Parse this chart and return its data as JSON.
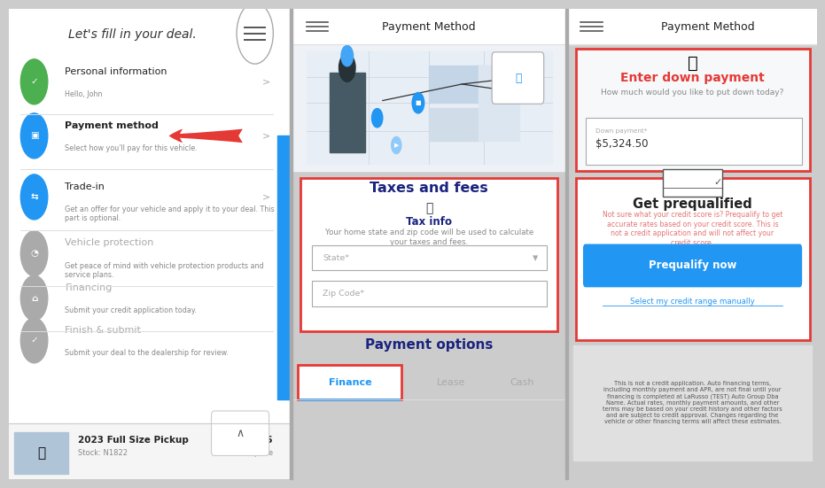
{
  "bg_color": "#ffffff",
  "panel1": {
    "bg": "#ffffff",
    "title": "Let's fill in your deal.",
    "items": [
      {
        "icon_color": "#4caf50",
        "label": "Personal information",
        "sublabel": "Hello, John",
        "active": false,
        "chevron": true
      },
      {
        "icon_color": "#2196f3",
        "label": "Payment method",
        "sublabel": "Select how you'll pay for this vehicle.",
        "active": true,
        "chevron": true,
        "arrow": true
      },
      {
        "icon_color": "#2196f3",
        "label": "Trade-in",
        "sublabel": "Get an offer for your vehicle and apply it to your deal. This\npart is optional.",
        "active": false,
        "chevron": true
      },
      {
        "icon_color": "#aaaaaa",
        "label": "Vehicle protection",
        "sublabel": "Get peace of mind with vehicle protection products and\nservice plans.",
        "active": false,
        "chevron": false
      },
      {
        "icon_color": "#aaaaaa",
        "label": "Financing",
        "sublabel": "Submit your credit application today.",
        "active": false,
        "chevron": false
      },
      {
        "icon_color": "#aaaaaa",
        "label": "Finish & submit",
        "sublabel": "Submit your deal to the dealership for review.",
        "active": false,
        "chevron": false
      }
    ],
    "car_label": "2023 Full Size Pickup",
    "car_stock": "Stock: N1822",
    "car_price": "$53,245",
    "car_price_label": "Vehicle price",
    "sidebar_color": "#2196f3",
    "footer_bg": "#f5f5f5"
  },
  "panel2": {
    "header": "Payment Method",
    "taxes_title": "Taxes and fees",
    "tax_info_title": "Tax info",
    "tax_info_desc": "Your home state and zip code will be used to calculate\nyour taxes and fees.",
    "state_placeholder": "State*",
    "zip_placeholder": "Zip Code*",
    "payment_options_title": "Payment options",
    "finance_label": "Finance",
    "lease_label": "Lease",
    "cash_label": "Cash",
    "red_box_color": "#e53935",
    "finance_underline": "#2196f3"
  },
  "panel3": {
    "header": "Payment Method",
    "down_payment_title": "Enter down payment",
    "down_payment_subtitle": "How much would you like to put down today?",
    "down_payment_field_label": "Down payment*",
    "down_payment_value": "$5,324.50",
    "prequalify_title": "Get prequalified",
    "prequalify_desc": "Not sure what your credit score is? Prequalify to get\naccurate rates based on your credit score. This is\nnot a credit application and will not affect your\ncredit score.",
    "prequalify_btn": "Prequalify now",
    "prequalify_link": "Select my credit range manually",
    "disclaimer": "This is not a credit application. Auto financing terms,\nincluding monthly payment and APR, are not final until your\nfinancing is completed at LaRusso (TEST) Auto Group Dba\nName. Actual rates, monthly payment amounts, and other\nterms may be based on your credit history and other factors\nand are subject to credit approval. Changes regarding the\nvehicle or other financing terms will affect these estimates.",
    "red_box_color": "#e53935",
    "btn_color": "#2196f3",
    "btn_text_color": "#ffffff",
    "down_title_color": "#e53935",
    "preq_desc_color": "#e57373",
    "disclaimer_bg": "#e0e0e0"
  },
  "divider_color": "#dddddd",
  "arrow_color": "#e53935"
}
